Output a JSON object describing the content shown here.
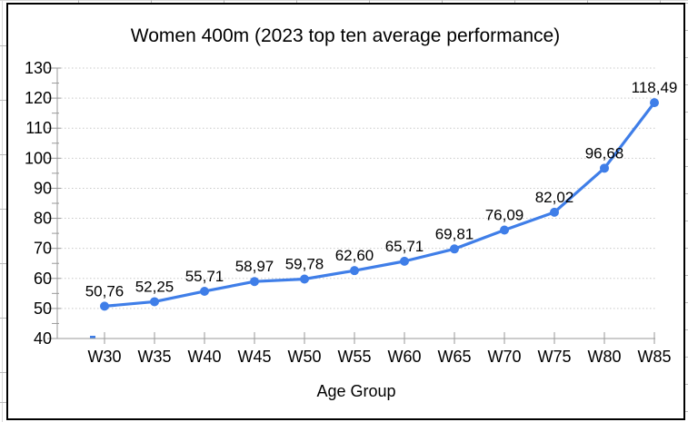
{
  "chart_data": {
    "type": "line",
    "title": "Women 400m (2023 top ten average performance)",
    "xlabel": "Age Group",
    "ylabel": "",
    "categories": [
      "W30",
      "W35",
      "W40",
      "W45",
      "W50",
      "W55",
      "W60",
      "W65",
      "W70",
      "W75",
      "W80",
      "W85"
    ],
    "values": [
      50.76,
      52.25,
      55.71,
      58.97,
      59.78,
      62.6,
      65.71,
      69.81,
      76.09,
      82.02,
      96.68,
      118.49
    ],
    "point_labels": [
      "50,76",
      "52,25",
      "55,71",
      "58,97",
      "59,78",
      "62,60",
      "65,71",
      "69,81",
      "76,09",
      "82,02",
      "96,68",
      "118,49"
    ],
    "ylim": [
      40,
      130
    ],
    "ytick_step": 10,
    "yticks": [
      130,
      120,
      110,
      100,
      90,
      80,
      70,
      60,
      50,
      40
    ],
    "ytick_labels": [
      "130",
      "120",
      "110",
      "100",
      "90",
      "80",
      "70",
      "60",
      "50",
      "40"
    ],
    "minor_ytick_step": 5,
    "grid": "horizontal-dotted",
    "legend": "none",
    "marker": "circle",
    "decimal_separator": ","
  },
  "colors": {
    "series": "#3f7ee8",
    "grid": "#c9c9c9",
    "axis": "#9a9a9a",
    "frame": "#000000",
    "text": "#000000",
    "sheet_line": "#d8d8d8",
    "sheet_tick": "#bdbdbd",
    "background": "#ffffff"
  }
}
